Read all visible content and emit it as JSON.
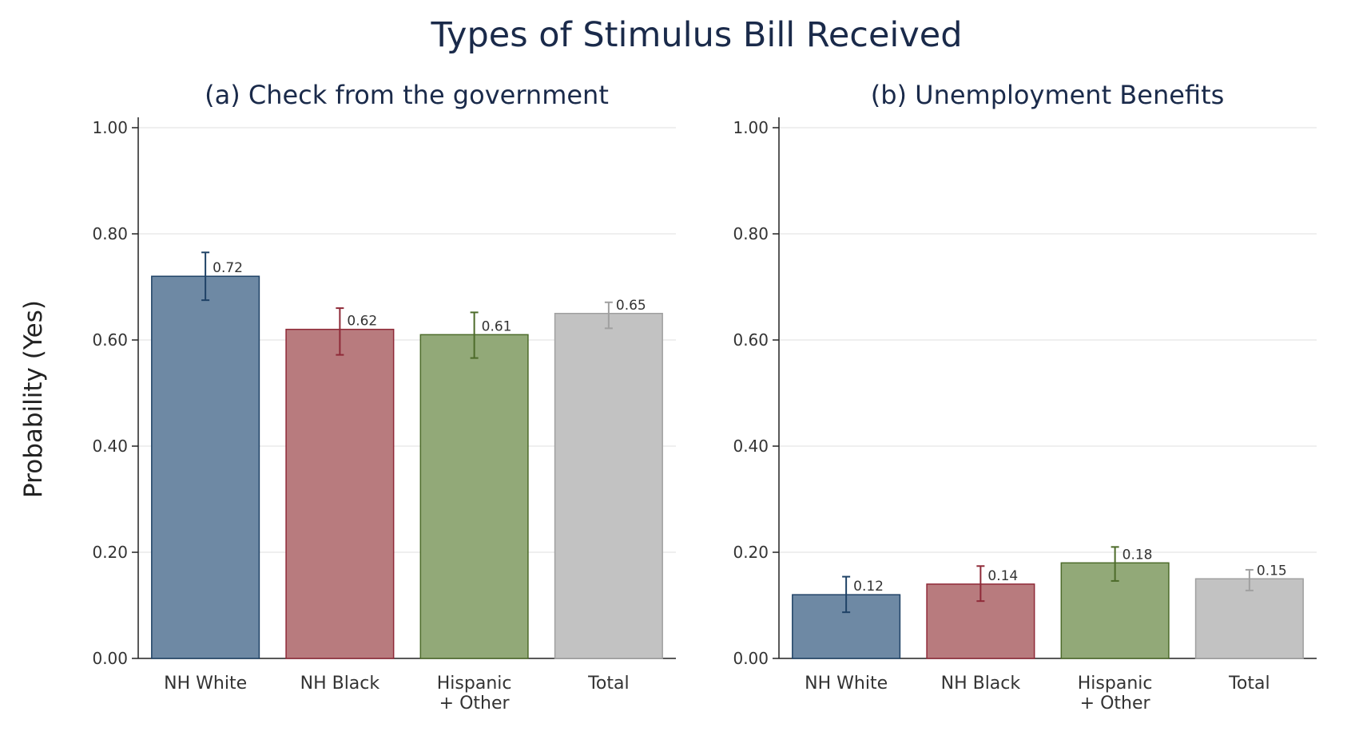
{
  "title": "Types of Stimulus Bill Received",
  "ylabel": "Probability (Yes)",
  "colors": {
    "NH White": {
      "fill": "#6e89a4",
      "stroke": "#1f4266"
    },
    "NH Black": {
      "fill": "#b87b7e",
      "stroke": "#8f2a38"
    },
    "Hispanic + Other": {
      "fill": "#92a978",
      "stroke": "#4d6b2a"
    },
    "Total": {
      "fill": "#c2c2c2",
      "stroke": "#a0a0a0"
    }
  },
  "chart_data": [
    {
      "type": "bar",
      "title": "(a) Check from the government",
      "categories": [
        "NH White",
        "NH Black",
        "Hispanic + Other",
        "Total"
      ],
      "category_lines": [
        [
          "NH White"
        ],
        [
          "NH Black"
        ],
        [
          "Hispanic",
          "+ Other"
        ],
        [
          "Total"
        ]
      ],
      "values": [
        0.72,
        0.62,
        0.61,
        0.65
      ],
      "value_labels": [
        "0.72",
        "0.62",
        "0.61",
        "0.65"
      ],
      "ci_low": [
        0.675,
        0.572,
        0.566,
        0.622
      ],
      "ci_high": [
        0.765,
        0.66,
        0.652,
        0.671
      ],
      "ylim": [
        0,
        1
      ],
      "yticks": [
        "0.00",
        "0.20",
        "0.40",
        "0.60",
        "0.80",
        "1.00"
      ],
      "grid": true
    },
    {
      "type": "bar",
      "title": "(b) Unemployment Benefits",
      "categories": [
        "NH White",
        "NH Black",
        "Hispanic + Other",
        "Total"
      ],
      "category_lines": [
        [
          "NH White"
        ],
        [
          "NH Black"
        ],
        [
          "Hispanic",
          "+ Other"
        ],
        [
          "Total"
        ]
      ],
      "values": [
        0.12,
        0.14,
        0.18,
        0.15
      ],
      "value_labels": [
        "0.12",
        "0.14",
        "0.18",
        "0.15"
      ],
      "ci_low": [
        0.087,
        0.108,
        0.146,
        0.128
      ],
      "ci_high": [
        0.154,
        0.174,
        0.21,
        0.167
      ],
      "ylim": [
        0,
        1
      ],
      "yticks": [
        "0.00",
        "0.20",
        "0.40",
        "0.60",
        "0.80",
        "1.00"
      ],
      "grid": true
    }
  ]
}
